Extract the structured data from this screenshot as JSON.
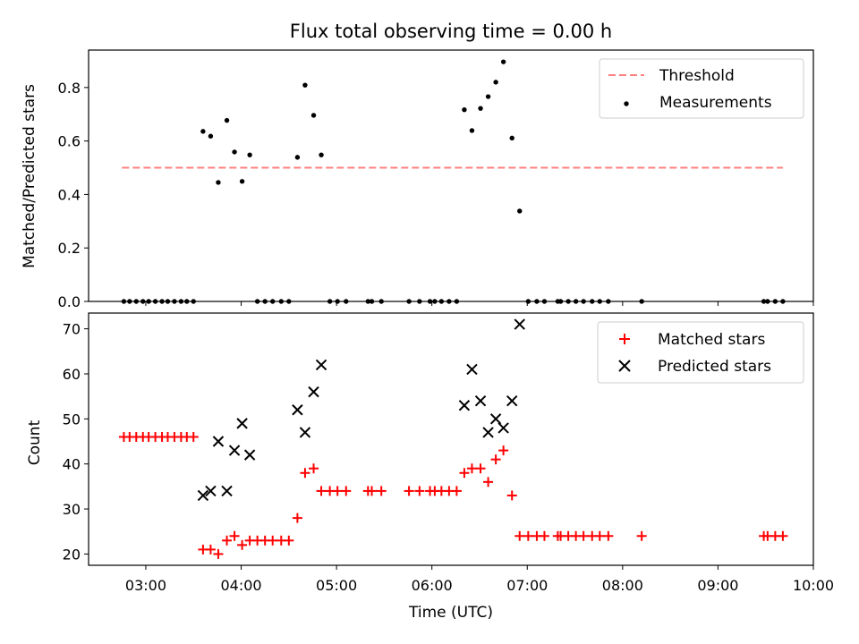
{
  "figure": {
    "title": "Flux total observing time = 0.00 h"
  },
  "colors": {
    "threshold": "#ff7f7f",
    "measurements": "#000000",
    "matched": "#ff0000",
    "predicted": "#000000",
    "axes": "#000000"
  },
  "chart_data": [
    {
      "type": "scatter",
      "title": "Flux total observing time = 0.00 h",
      "xlabel": "",
      "ylabel": "Matched/Predicted stars",
      "x_axis": "time (UTC, hours)",
      "xlim": [
        2.4,
        10.0
      ],
      "ylim": [
        0,
        0.94
      ],
      "yticks": [
        0.0,
        0.2,
        0.4,
        0.6,
        0.8
      ],
      "ytick_labels": [
        "0.0",
        "0.2",
        "0.4",
        "0.6",
        "0.8"
      ],
      "xticks": [
        3,
        4,
        5,
        6,
        7,
        8,
        9,
        10
      ],
      "xtick_labels_shown": false,
      "legend_placement": "top-right",
      "threshold": {
        "name": "Threshold",
        "y": 0.5,
        "x_range": [
          2.75,
          9.68
        ],
        "style": "dashed"
      },
      "series": [
        {
          "name": "Measurements",
          "marker": "dot",
          "points": [
            [
              2.77,
              0.0
            ],
            [
              2.83,
              0.0
            ],
            [
              2.9,
              0.0
            ],
            [
              2.97,
              0.0
            ],
            [
              3.03,
              0.0
            ],
            [
              3.1,
              0.0
            ],
            [
              3.17,
              0.0
            ],
            [
              3.23,
              0.0
            ],
            [
              3.3,
              0.0
            ],
            [
              3.37,
              0.0
            ],
            [
              3.43,
              0.0
            ],
            [
              3.5,
              0.0
            ],
            [
              3.6,
              0.636
            ],
            [
              3.68,
              0.618
            ],
            [
              3.76,
              0.445
            ],
            [
              3.85,
              0.677
            ],
            [
              3.93,
              0.559
            ],
            [
              4.01,
              0.449
            ],
            [
              4.09,
              0.548
            ],
            [
              4.17,
              0.0
            ],
            [
              4.25,
              0.0
            ],
            [
              4.33,
              0.0
            ],
            [
              4.42,
              0.0
            ],
            [
              4.5,
              0.0
            ],
            [
              4.59,
              0.539
            ],
            [
              4.67,
              0.809
            ],
            [
              4.76,
              0.696
            ],
            [
              4.84,
              0.548
            ],
            [
              4.93,
              0.0
            ],
            [
              5.01,
              0.0
            ],
            [
              5.1,
              0.0
            ],
            [
              5.33,
              0.0
            ],
            [
              5.37,
              0.0
            ],
            [
              5.47,
              0.0
            ],
            [
              5.76,
              0.0
            ],
            [
              5.87,
              0.0
            ],
            [
              5.98,
              0.0
            ],
            [
              6.03,
              0.0
            ],
            [
              6.1,
              0.0
            ],
            [
              6.18,
              0.0
            ],
            [
              6.26,
              0.0
            ],
            [
              6.34,
              0.717
            ],
            [
              6.42,
              0.639
            ],
            [
              6.51,
              0.722
            ],
            [
              6.59,
              0.766
            ],
            [
              6.67,
              0.82
            ],
            [
              6.75,
              0.896
            ],
            [
              6.84,
              0.611
            ],
            [
              6.92,
              0.338
            ],
            [
              7.01,
              0.0
            ],
            [
              7.1,
              0.0
            ],
            [
              7.18,
              0.0
            ],
            [
              7.32,
              0.0
            ],
            [
              7.35,
              0.0
            ],
            [
              7.43,
              0.0
            ],
            [
              7.51,
              0.0
            ],
            [
              7.59,
              0.0
            ],
            [
              7.68,
              0.0
            ],
            [
              7.76,
              0.0
            ],
            [
              7.85,
              0.0
            ],
            [
              8.2,
              0.0
            ],
            [
              9.48,
              0.0
            ],
            [
              9.52,
              0.0
            ],
            [
              9.6,
              0.0
            ],
            [
              9.68,
              0.0
            ]
          ]
        }
      ]
    },
    {
      "type": "scatter",
      "title": "",
      "xlabel": "Time (UTC)",
      "ylabel": "Count",
      "x_axis": "time (UTC, hours)",
      "xlim": [
        2.4,
        10.0
      ],
      "ylim": [
        17.5,
        73.5
      ],
      "yticks": [
        20,
        30,
        40,
        50,
        60,
        70
      ],
      "ytick_labels": [
        "20",
        "30",
        "40",
        "50",
        "60",
        "70"
      ],
      "xticks": [
        3,
        4,
        5,
        6,
        7,
        8,
        9,
        10
      ],
      "xtick_labels": [
        "03:00",
        "04:00",
        "05:00",
        "06:00",
        "07:00",
        "08:00",
        "09:00",
        "10:00"
      ],
      "legend_placement": "top-right",
      "series": [
        {
          "name": "Matched stars",
          "marker": "plus",
          "points": [
            [
              2.77,
              46
            ],
            [
              2.83,
              46
            ],
            [
              2.9,
              46
            ],
            [
              2.97,
              46
            ],
            [
              3.03,
              46
            ],
            [
              3.1,
              46
            ],
            [
              3.17,
              46
            ],
            [
              3.23,
              46
            ],
            [
              3.3,
              46
            ],
            [
              3.37,
              46
            ],
            [
              3.43,
              46
            ],
            [
              3.5,
              46
            ],
            [
              3.6,
              21
            ],
            [
              3.68,
              21
            ],
            [
              3.76,
              20
            ],
            [
              3.85,
              23
            ],
            [
              3.93,
              24
            ],
            [
              4.01,
              22
            ],
            [
              4.09,
              23
            ],
            [
              4.17,
              23
            ],
            [
              4.25,
              23
            ],
            [
              4.33,
              23
            ],
            [
              4.42,
              23
            ],
            [
              4.5,
              23
            ],
            [
              4.59,
              28
            ],
            [
              4.67,
              38
            ],
            [
              4.76,
              39
            ],
            [
              4.84,
              34
            ],
            [
              4.93,
              34
            ],
            [
              5.01,
              34
            ],
            [
              5.1,
              34
            ],
            [
              5.33,
              34
            ],
            [
              5.37,
              34
            ],
            [
              5.47,
              34
            ],
            [
              5.76,
              34
            ],
            [
              5.87,
              34
            ],
            [
              5.98,
              34
            ],
            [
              6.03,
              34
            ],
            [
              6.1,
              34
            ],
            [
              6.18,
              34
            ],
            [
              6.26,
              34
            ],
            [
              6.34,
              38
            ],
            [
              6.42,
              39
            ],
            [
              6.51,
              39
            ],
            [
              6.59,
              36
            ],
            [
              6.67,
              41
            ],
            [
              6.75,
              43
            ],
            [
              6.84,
              33
            ],
            [
              6.92,
              24
            ],
            [
              7.01,
              24
            ],
            [
              7.1,
              24
            ],
            [
              7.18,
              24
            ],
            [
              7.32,
              24
            ],
            [
              7.35,
              24
            ],
            [
              7.43,
              24
            ],
            [
              7.51,
              24
            ],
            [
              7.59,
              24
            ],
            [
              7.68,
              24
            ],
            [
              7.76,
              24
            ],
            [
              7.85,
              24
            ],
            [
              8.2,
              24
            ],
            [
              9.48,
              24
            ],
            [
              9.52,
              24
            ],
            [
              9.6,
              24
            ],
            [
              9.68,
              24
            ]
          ]
        },
        {
          "name": "Predicted stars",
          "marker": "x",
          "points": [
            [
              3.6,
              33
            ],
            [
              3.68,
              34
            ],
            [
              3.76,
              45
            ],
            [
              3.85,
              34
            ],
            [
              3.93,
              43
            ],
            [
              4.01,
              49
            ],
            [
              4.09,
              42
            ],
            [
              4.59,
              52
            ],
            [
              4.67,
              47
            ],
            [
              4.76,
              56
            ],
            [
              4.84,
              62
            ],
            [
              6.34,
              53
            ],
            [
              6.42,
              61
            ],
            [
              6.51,
              54
            ],
            [
              6.59,
              47
            ],
            [
              6.67,
              50
            ],
            [
              6.75,
              48
            ],
            [
              6.84,
              54
            ],
            [
              6.92,
              71
            ]
          ]
        }
      ]
    }
  ]
}
